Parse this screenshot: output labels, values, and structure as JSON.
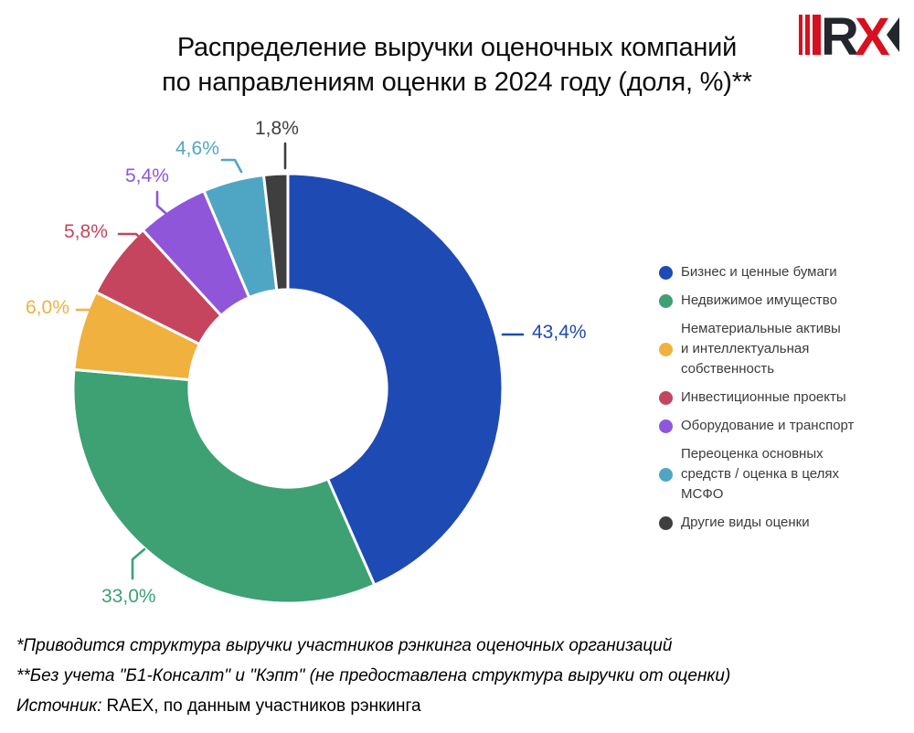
{
  "logo": {
    "name": "RAEX",
    "letter_r": "R",
    "letter_x": "X",
    "red": "#d8101f",
    "dark": "#23262c"
  },
  "header": {
    "title_line1": "Распределение выручки оценочных компаний",
    "title_line2": "по направлениям оценки в 2024 году (доля, %)**"
  },
  "chart_data": {
    "type": "pie",
    "subtype": "donut",
    "title": "Распределение выручки оценочных компаний по направлениям оценки в 2024 году (доля, %)**",
    "unit": "%",
    "direction": "clockwise",
    "start_angle_deg": 0,
    "inner_radius_ratio": 0.46,
    "legend_position": "right",
    "slices": [
      {
        "label": "Бизнес и ценные бумаги",
        "value": 43.4,
        "display": "43,4%",
        "color": "#1e4ab3"
      },
      {
        "label": "Недвижимое имущество",
        "value": 33.0,
        "display": "33,0%",
        "color": "#3da173"
      },
      {
        "label": "Нематериальные активы и интеллектуальная собственность",
        "value": 6.0,
        "display": "6,0%",
        "color": "#f1b13f"
      },
      {
        "label": "Инвестиционные проекты",
        "value": 5.8,
        "display": "5,8%",
        "color": "#c5455e"
      },
      {
        "label": "Оборудование и транспорт",
        "value": 5.4,
        "display": "5,4%",
        "color": "#8f56d9"
      },
      {
        "label": "Переоценка основных средств / оценка в целях МСФО",
        "value": 4.6,
        "display": "4,6%",
        "color": "#4fa6c4"
      },
      {
        "label": "Другие виды оценки",
        "value": 1.8,
        "display": "1,8%",
        "color": "#3f3f3f"
      }
    ]
  },
  "footnotes": {
    "line1": "*Приводится структура выручки участников рэнкинга оценочных организаций",
    "line2": "**Без учета \"Б1-Консалт\" и \"Кэпт\" (не предоставлена структура выручки от оценки)",
    "source_label": "Источник:",
    "source_text": "RAEX, по данным участников рэнкинга"
  }
}
